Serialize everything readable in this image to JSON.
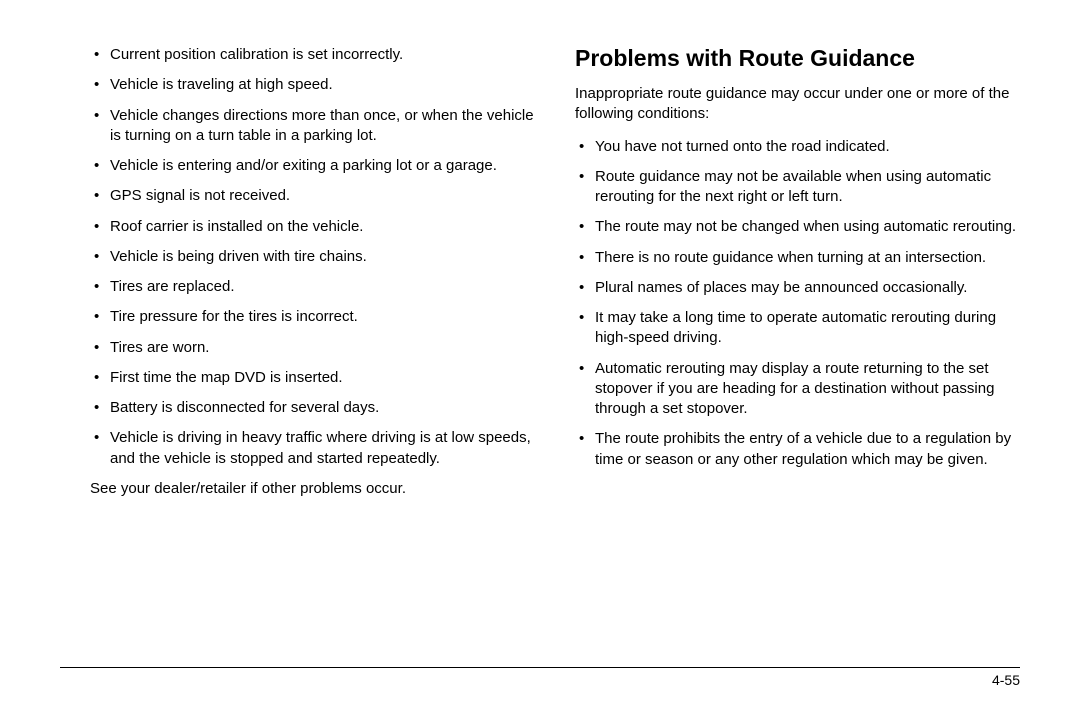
{
  "leftColumn": {
    "items": [
      "Current position calibration is set incorrectly.",
      "Vehicle is traveling at high speed.",
      "Vehicle changes directions more than once, or when the vehicle is turning on a turn table in a parking lot.",
      "Vehicle is entering and/or exiting a parking lot or a garage.",
      "GPS signal is not received.",
      "Roof carrier is installed on the vehicle.",
      "Vehicle is being driven with tire chains.",
      "Tires are replaced.",
      "Tire pressure for the tires is incorrect.",
      "Tires are worn.",
      "First time the map DVD is inserted.",
      "Battery is disconnected for several days.",
      "Vehicle is driving in heavy traffic where driving is at low speeds, and the vehicle is stopped and started repeatedly."
    ],
    "closing": "See your dealer/retailer if other problems occur."
  },
  "rightColumn": {
    "heading": "Problems with Route Guidance",
    "intro": "Inappropriate route guidance may occur under one or more of the following conditions:",
    "items": [
      "You have not turned onto the road indicated.",
      "Route guidance may not be available when using automatic rerouting for the next right or left turn.",
      "The route may not be changed when using automatic rerouting.",
      "There is no route guidance when turning at an intersection.",
      "Plural names of places may be announced occasionally.",
      "It may take a long time to operate automatic rerouting during high-speed driving.",
      "Automatic rerouting may display a route returning to the set stopover if you are heading for a destination without passing through a set stopover.",
      "The route prohibits the entry of a vehicle due to a regulation by time or season or any other regulation which may be given."
    ]
  },
  "pageNumber": "4-55"
}
